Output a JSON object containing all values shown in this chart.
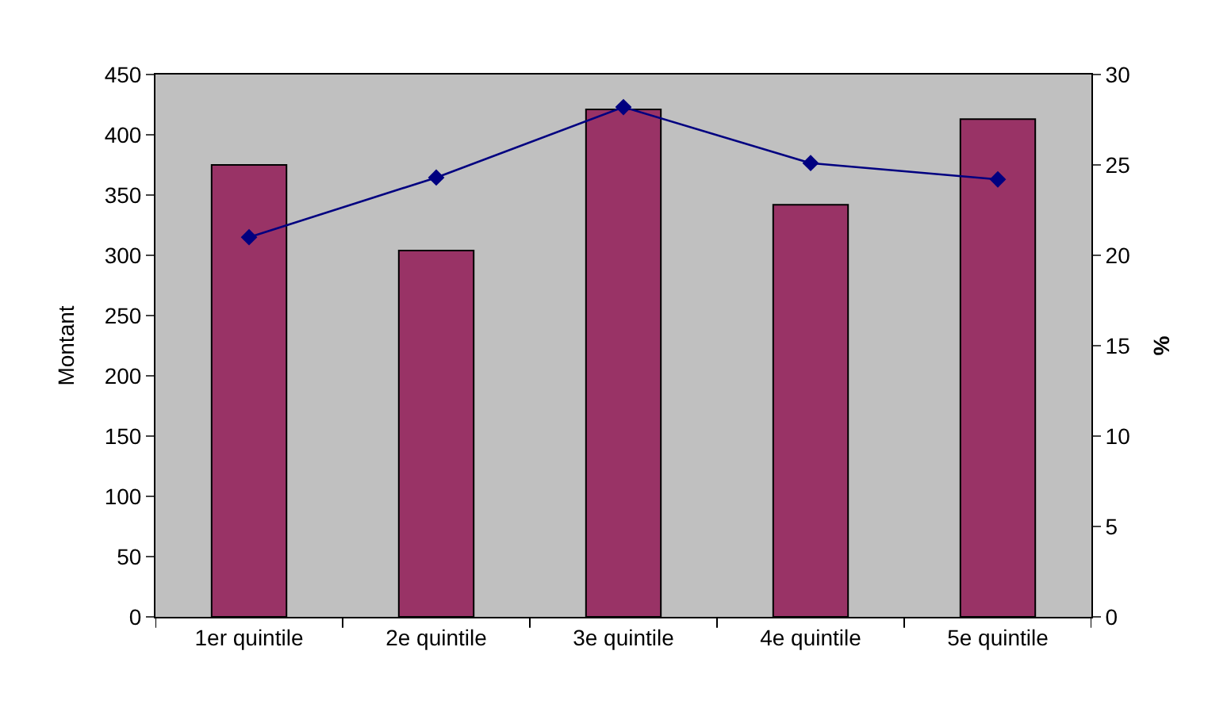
{
  "chart_data": {
    "type": "bar",
    "ylabel": "Montant",
    "y2label": "%",
    "categories": [
      "1er quintile",
      "2e quintile",
      "3e quintile",
      "4e quintile",
      "5e quintile"
    ],
    "series": [
      {
        "color": "#993366",
        "values": [
          375,
          304,
          421,
          342,
          413
        ]
      },
      {
        "type": "line",
        "axis": "y2",
        "color": "#000080",
        "marker": "diamond",
        "values": [
          21.0,
          24.3,
          28.2,
          25.1,
          24.2
        ]
      }
    ],
    "ylim": [
      0,
      450
    ],
    "yticks": [
      0,
      50,
      100,
      150,
      200,
      250,
      300,
      350,
      400,
      450
    ],
    "y2lim": [
      0,
      30
    ],
    "y2ticks": [
      0,
      5,
      10,
      15,
      20,
      25,
      30
    ],
    "grid": false,
    "legend": false
  }
}
